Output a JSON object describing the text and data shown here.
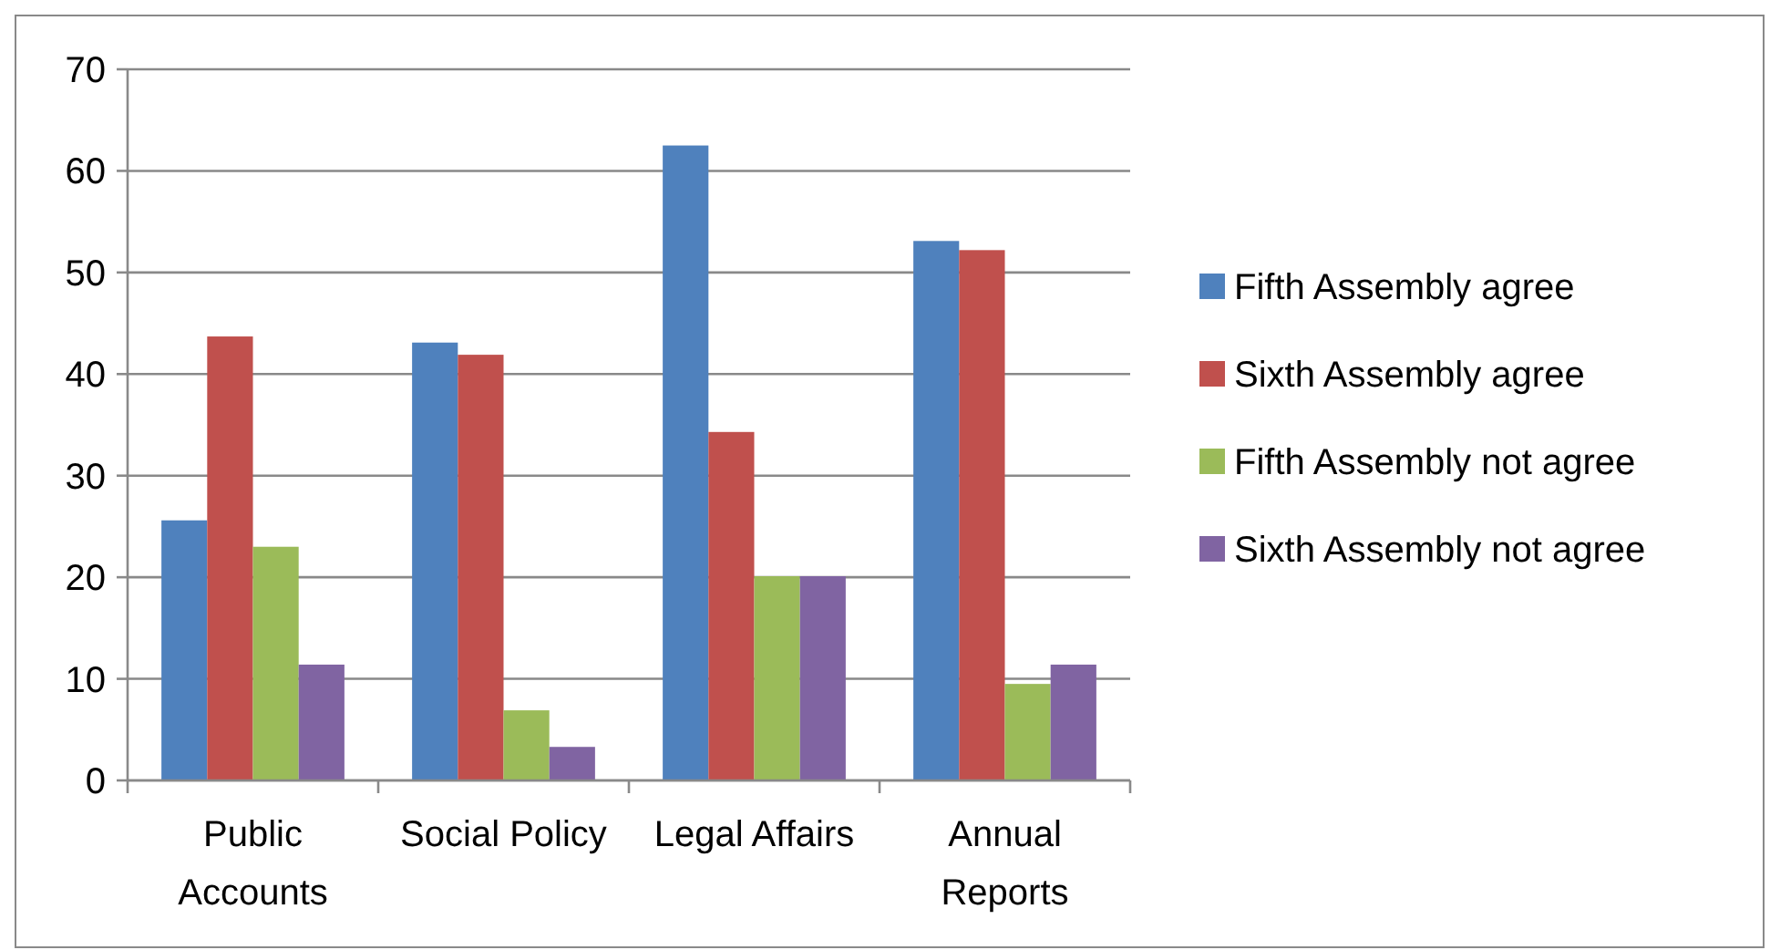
{
  "chart_data": {
    "type": "bar",
    "categories": [
      "Public Accounts",
      "Social Policy",
      "Legal Affairs",
      "Annual Reports"
    ],
    "series": [
      {
        "name": "Fifth Assembly agree",
        "color": "#4f81bd",
        "values": [
          25.6,
          43.1,
          62.5,
          53.1
        ]
      },
      {
        "name": "Sixth Assembly agree",
        "color": "#c0504d",
        "values": [
          43.7,
          41.9,
          34.3,
          52.2
        ]
      },
      {
        "name": "Fifth Assembly not agree",
        "color": "#9bbb59",
        "values": [
          23.0,
          6.9,
          20.1,
          9.5
        ]
      },
      {
        "name": "Sixth Assembly not agree",
        "color": "#8064a2",
        "values": [
          11.4,
          3.3,
          20.1,
          11.4
        ]
      }
    ],
    "ylim": [
      0,
      70
    ],
    "yticks": [
      0,
      10,
      20,
      30,
      40,
      50,
      60,
      70
    ],
    "grid": "y",
    "legend": "right"
  }
}
